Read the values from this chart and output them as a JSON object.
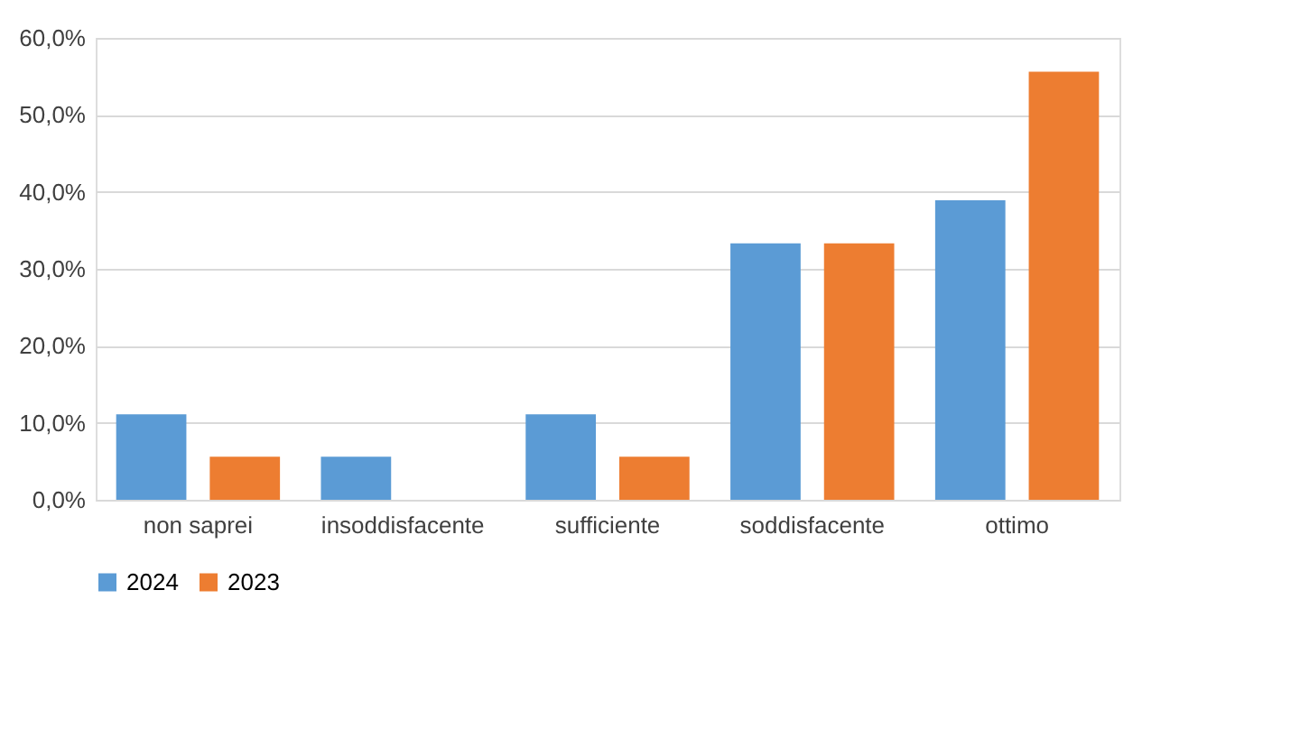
{
  "chart_data": {
    "type": "bar",
    "categories": [
      "non saprei",
      "insoddisfacente",
      "sufficiente",
      "soddisfacente",
      "ottimo"
    ],
    "series": [
      {
        "name": "2024",
        "color": "#5b9bd5",
        "values": [
          11.1,
          5.6,
          11.1,
          33.3,
          38.9
        ]
      },
      {
        "name": "2023",
        "color": "#ed7d31",
        "values": [
          5.6,
          0,
          5.6,
          33.3,
          55.6
        ]
      }
    ],
    "ylim": [
      0,
      60
    ],
    "yticks": [
      {
        "value": 0,
        "label": "0,0%"
      },
      {
        "value": 10,
        "label": "10,0%"
      },
      {
        "value": 20,
        "label": "20,0%"
      },
      {
        "value": 30,
        "label": "30,0%"
      },
      {
        "value": 40,
        "label": "40,0%"
      },
      {
        "value": 50,
        "label": "50,0%"
      },
      {
        "value": 60,
        "label": "60,0%"
      }
    ],
    "grid": "y",
    "legend": "bottom"
  }
}
